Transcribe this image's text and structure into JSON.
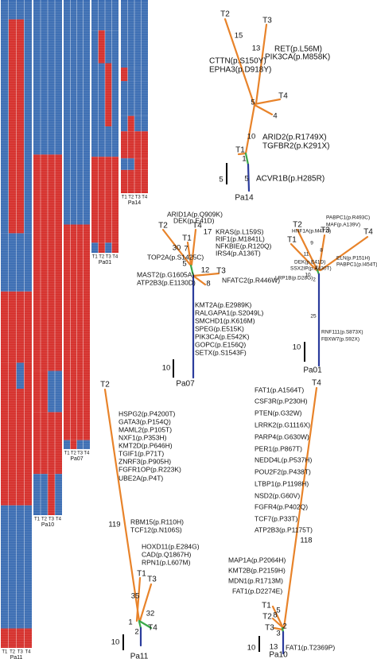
{
  "heatmaps": [
    {
      "name": "Pa11",
      "columns": [
        "T1",
        "T2",
        "T3",
        "T4"
      ]
    },
    {
      "name": "Pa10",
      "columns": [
        "T1",
        "T2",
        "T3",
        "T4"
      ]
    },
    {
      "name": "Pa07",
      "columns": [
        "T1",
        "T2",
        "T3",
        "T4"
      ]
    },
    {
      "name": "Pa01",
      "columns": [
        "T1",
        "T2",
        "T3",
        "T4"
      ]
    },
    {
      "name": "Pa14",
      "columns": [
        "T1",
        "T2",
        "T3",
        "T4"
      ]
    }
  ],
  "trees": [
    {
      "name": "Pa14",
      "scale_bar": 5,
      "tips": [
        "T2",
        "T3",
        "T4",
        "T1"
      ],
      "branch_lengths": [
        15,
        13,
        5,
        4,
        10,
        1,
        5
      ],
      "mutations": [
        "RET(p.L56M)",
        "PIK3CA(p.M858K)",
        "CTTN(p.S150Y)",
        "EPHA3(p.D918Y)",
        "ARID2(p.R1749X)",
        "TGFBR2(p.K291X)",
        "ACVR1B(p.H285R)"
      ]
    },
    {
      "name": "Pa07",
      "scale_bar": 10,
      "tips": [
        "T2",
        "T4",
        "T1",
        "T3"
      ],
      "branch_lengths": [
        30,
        7,
        17,
        5,
        12,
        8
      ],
      "mutations": [
        "ARID1A(p.Q909K)",
        "DEK(p.E41D)",
        "KRAS(p.L159S)",
        "RIF1(p.M1841L)",
        "NFKBIE(p.R120Q)",
        "IRS4(p.A136T)",
        "TOP2A(p.S1425C)",
        "NFATC2(p.R446W)",
        "MAST2(p.G1605A)",
        "ATP2B3(p.E1130D)",
        "KMT2A(p.E2989K)",
        "RALGAPA1(p.S2049L)",
        "SMCHD1(p.K616M)",
        "SPEG(p.E515K)",
        "PIK3CA(p.E542K)",
        "GOPC(p.E156Q)",
        "SETX(p.S1543F)"
      ]
    },
    {
      "name": "Pa01",
      "scale_bar": 10,
      "tips": [
        "T2",
        "T3",
        "T4",
        "T1"
      ],
      "branch_lengths": [
        11,
        9,
        8,
        10,
        2,
        2,
        25
      ],
      "mutations": [
        "HNF1A(p.M477I)",
        "PABPC1(p.R493C)",
        "MAF(p.A139V)",
        "ELN(p.P151H)",
        "PABPC1(p.I454T)",
        "DEK(p.E41D)",
        "SSX2IP(p.A430T)",
        "LRP1B(p.D28G)",
        "RNF111(p.S873X)",
        "FBXW7(p.S92X)"
      ]
    },
    {
      "name": "Pa11",
      "scale_bar": 10,
      "tips": [
        "T2",
        "T1",
        "T3",
        "T4"
      ],
      "branch_lengths": [
        119,
        35,
        32,
        1,
        2
      ],
      "mutations": [
        "HSPG2(p.P4200T)",
        "GATA3(p.P154Q)",
        "MAML2(p.P105T)",
        "NXF1(p.P353H)",
        "KMT2D(p.P646H)",
        "TGIF1(p.P71T)",
        "ZNRF3(p.P905H)",
        "FGFR1OP(p.R223K)",
        "UBE2A(p.P4T)",
        "RBM15(p.R110H)",
        "TCF12(p.N106S)",
        "HOXD11(p.E284G)",
        "CAD(p.Q1867H)",
        "RPN1(p.L607M)"
      ]
    },
    {
      "name": "Pa10",
      "scale_bar": 10,
      "tips": [
        "T4",
        "T1",
        "T2",
        "T3"
      ],
      "branch_lengths": [
        118,
        5,
        8,
        2,
        3,
        13
      ],
      "mutations": [
        "FAT1(p.A1564T)",
        "CSF3R(p.P230H)",
        "PTEN(p.G32W)",
        "LRRK2(p.G1116X)",
        "PARP4(p.G630W)",
        "PER1(p.P867T)",
        "NEDD4L(p.P537H)",
        "POU2F2(p.P438T)",
        "LTBP1(p.P1198H)",
        "NSD2(p.G60V)",
        "FGFR4(p.P402Q)",
        "TCF7(p.P33T)",
        "ATP2B3(p.P1175T)",
        "MAP1A(p.P2064H)",
        "KMT2B(p.P2159H)",
        "MDN1(p.R1713M)",
        "FAT1(p.D2274E)",
        "FAT1(p.T2369P)"
      ]
    }
  ]
}
